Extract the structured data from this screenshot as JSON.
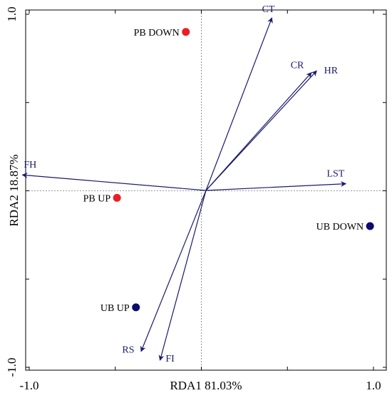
{
  "chart_data": {
    "type": "scatter",
    "subtype": "rda-biplot",
    "title": "",
    "xlabel": "RDA1 81.03%",
    "ylabel": "RDA2 18.87%",
    "xlim": [
      -1.0,
      1.0
    ],
    "ylim": [
      -1.0,
      1.0
    ],
    "x_ticks": [
      {
        "value": -1.0,
        "label": "-1.0"
      },
      {
        "value": 1.0,
        "label": "1.0"
      }
    ],
    "y_ticks": [
      {
        "value": -1.0,
        "label": "-1.0"
      },
      {
        "value": 1.0,
        "label": "1.0"
      }
    ],
    "minor_ticks": [
      -0.5,
      0.0,
      0.5
    ],
    "grid": false,
    "reference_lines": {
      "x": 0,
      "y": 0,
      "style": "dashed"
    },
    "vectors": [
      {
        "label": "CT",
        "x": 0.41,
        "y": 0.98
      },
      {
        "label": "CR",
        "x": 0.64,
        "y": 0.67
      },
      {
        "label": "HR",
        "x": 0.67,
        "y": 0.68
      },
      {
        "label": "LST",
        "x": 0.84,
        "y": 0.04
      },
      {
        "label": "FH",
        "x": -1.04,
        "y": 0.09
      },
      {
        "label": "RS",
        "x": -0.35,
        "y": -0.91
      },
      {
        "label": "FI",
        "x": -0.24,
        "y": -0.96
      }
    ],
    "sites": [
      {
        "label": "PB DOWN",
        "x": -0.09,
        "y": 0.9,
        "color": "#ee1c25"
      },
      {
        "label": "PB UP",
        "x": -0.49,
        "y": -0.04,
        "color": "#ee1c25"
      },
      {
        "label": "UB DOWN",
        "x": 0.98,
        "y": -0.2,
        "color": "#0b0b6e"
      },
      {
        "label": "UB UP",
        "x": -0.38,
        "y": -0.66,
        "color": "#0b0b6e"
      }
    ],
    "vector_color": "#1a1a6e"
  }
}
